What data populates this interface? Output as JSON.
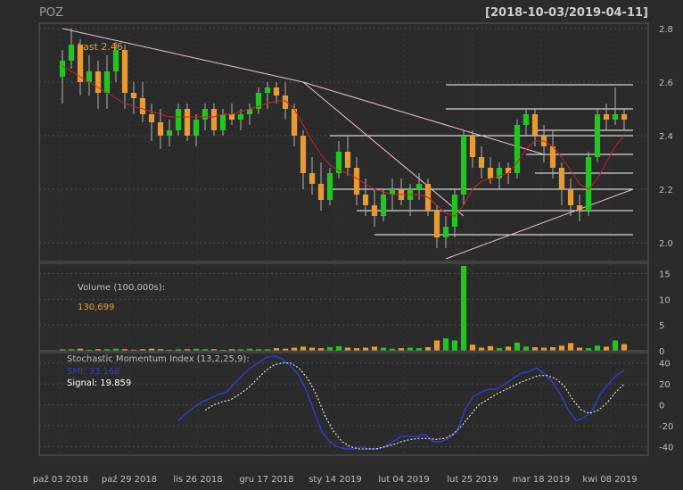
{
  "chart_data": {
    "type": "candlestick",
    "symbol": "POZ",
    "range": "[2018-10-03/2019-04-11]",
    "last_label": "Last 2.46",
    "x_tick_labels": [
      "paź 03 2018",
      "paź 29 2018",
      "lis 26 2018",
      "gru 17 2018",
      "sty 14 2019",
      "lut 04 2019",
      "lut 25 2019",
      "mar 18 2019",
      "kwi 08 2019"
    ],
    "price_panel": {
      "ylim": [
        1.93,
        2.82
      ],
      "yticks": [
        "2.0",
        "2.2",
        "2.4",
        "2.6",
        "2.8"
      ],
      "ohlc": [
        [
          2.62,
          2.72,
          2.52,
          2.68
        ],
        [
          2.68,
          2.8,
          2.65,
          2.74
        ],
        [
          2.74,
          2.76,
          2.55,
          2.6
        ],
        [
          2.6,
          2.7,
          2.55,
          2.64
        ],
        [
          2.64,
          2.68,
          2.5,
          2.56
        ],
        [
          2.56,
          2.7,
          2.5,
          2.64
        ],
        [
          2.64,
          2.75,
          2.6,
          2.72
        ],
        [
          2.72,
          2.74,
          2.5,
          2.56
        ],
        [
          2.56,
          2.6,
          2.48,
          2.54
        ],
        [
          2.54,
          2.6,
          2.45,
          2.48
        ],
        [
          2.48,
          2.52,
          2.38,
          2.45
        ],
        [
          2.45,
          2.5,
          2.35,
          2.4
        ],
        [
          2.4,
          2.46,
          2.36,
          2.42
        ],
        [
          2.42,
          2.52,
          2.4,
          2.5
        ],
        [
          2.5,
          2.52,
          2.38,
          2.4
        ],
        [
          2.4,
          2.48,
          2.36,
          2.46
        ],
        [
          2.46,
          2.52,
          2.42,
          2.5
        ],
        [
          2.5,
          2.52,
          2.4,
          2.42
        ],
        [
          2.42,
          2.5,
          2.4,
          2.48
        ],
        [
          2.48,
          2.52,
          2.44,
          2.46
        ],
        [
          2.46,
          2.5,
          2.42,
          2.48
        ],
        [
          2.48,
          2.52,
          2.44,
          2.5
        ],
        [
          2.5,
          2.58,
          2.48,
          2.56
        ],
        [
          2.56,
          2.6,
          2.5,
          2.58
        ],
        [
          2.58,
          2.6,
          2.52,
          2.55
        ],
        [
          2.55,
          2.6,
          2.46,
          2.5
        ],
        [
          2.5,
          2.52,
          2.36,
          2.4
        ],
        [
          2.4,
          2.42,
          2.2,
          2.26
        ],
        [
          2.26,
          2.32,
          2.18,
          2.22
        ],
        [
          2.22,
          2.3,
          2.12,
          2.16
        ],
        [
          2.16,
          2.28,
          2.14,
          2.26
        ],
        [
          2.26,
          2.38,
          2.24,
          2.34
        ],
        [
          2.34,
          2.4,
          2.25,
          2.28
        ],
        [
          2.28,
          2.32,
          2.14,
          2.18
        ],
        [
          2.18,
          2.24,
          2.1,
          2.14
        ],
        [
          2.14,
          2.2,
          2.06,
          2.1
        ],
        [
          2.1,
          2.2,
          2.08,
          2.18
        ],
        [
          2.18,
          2.24,
          2.12,
          2.2
        ],
        [
          2.2,
          2.24,
          2.14,
          2.16
        ],
        [
          2.16,
          2.22,
          2.1,
          2.2
        ],
        [
          2.2,
          2.26,
          2.16,
          2.22
        ],
        [
          2.22,
          2.24,
          2.1,
          2.12
        ],
        [
          2.12,
          2.14,
          1.98,
          2.02
        ],
        [
          2.02,
          2.1,
          1.98,
          2.06
        ],
        [
          2.06,
          2.2,
          2.02,
          2.18
        ],
        [
          2.18,
          2.42,
          2.14,
          2.4
        ],
        [
          2.4,
          2.42,
          2.28,
          2.32
        ],
        [
          2.32,
          2.36,
          2.24,
          2.28
        ],
        [
          2.28,
          2.32,
          2.22,
          2.24
        ],
        [
          2.24,
          2.3,
          2.2,
          2.28
        ],
        [
          2.28,
          2.3,
          2.22,
          2.26
        ],
        [
          2.26,
          2.46,
          2.24,
          2.44
        ],
        [
          2.44,
          2.5,
          2.4,
          2.48
        ],
        [
          2.48,
          2.5,
          2.36,
          2.4
        ],
        [
          2.4,
          2.44,
          2.3,
          2.36
        ],
        [
          2.36,
          2.42,
          2.24,
          2.28
        ],
        [
          2.28,
          2.3,
          2.14,
          2.2
        ],
        [
          2.2,
          2.24,
          2.1,
          2.14
        ],
        [
          2.14,
          2.18,
          2.08,
          2.12
        ],
        [
          2.12,
          2.34,
          2.1,
          2.32
        ],
        [
          2.32,
          2.5,
          2.3,
          2.48
        ],
        [
          2.48,
          2.52,
          2.42,
          2.46
        ],
        [
          2.46,
          2.58,
          2.44,
          2.48
        ],
        [
          2.48,
          2.5,
          2.42,
          2.46
        ]
      ],
      "ma": [
        2.66,
        2.64,
        2.62,
        2.6,
        2.58,
        2.56,
        2.54,
        2.52,
        2.51,
        2.5,
        2.49,
        2.48,
        2.47,
        2.47,
        2.47,
        2.47,
        2.47,
        2.47,
        2.48,
        2.48,
        2.49,
        2.5,
        2.51,
        2.52,
        2.53,
        2.53,
        2.5,
        2.44,
        2.38,
        2.33,
        2.29,
        2.27,
        2.26,
        2.24,
        2.22,
        2.2,
        2.19,
        2.18,
        2.18,
        2.18,
        2.18,
        2.17,
        2.14,
        2.11,
        2.1,
        2.14,
        2.2,
        2.23,
        2.24,
        2.25,
        2.26,
        2.3,
        2.35,
        2.38,
        2.38,
        2.36,
        2.32,
        2.27,
        2.22,
        2.2,
        2.24,
        2.3,
        2.36,
        2.4
      ],
      "trend_lines": [
        {
          "from": [
            0,
            2.8
          ],
          "to": [
            27,
            2.6
          ]
        },
        {
          "from": [
            27,
            2.6
          ],
          "to": [
            54,
            2.33
          ]
        },
        {
          "from": [
            27,
            2.6
          ],
          "to": [
            45,
            2.1
          ]
        },
        {
          "from": [
            43,
            1.94
          ],
          "to": [
            64,
            2.2
          ]
        }
      ],
      "levels": [
        {
          "y": 2.59,
          "from": 43,
          "to": 64
        },
        {
          "y": 2.5,
          "from": 43,
          "to": 64
        },
        {
          "y": 2.42,
          "from": 53,
          "to": 64
        },
        {
          "y": 2.4,
          "from": 30,
          "to": 64
        },
        {
          "y": 2.33,
          "from": 52,
          "to": 64
        },
        {
          "y": 2.26,
          "from": 53,
          "to": 64
        },
        {
          "y": 2.2,
          "from": 30,
          "to": 64
        },
        {
          "y": 2.12,
          "from": 33,
          "to": 64
        },
        {
          "y": 2.03,
          "from": 35,
          "to": 64
        }
      ]
    },
    "volume_panel": {
      "label": "Volume (100,000s):",
      "last_value": "130,699",
      "ylim": [
        0,
        17
      ],
      "yticks": [
        "0",
        "5",
        "10",
        "15"
      ],
      "values": [
        0.3,
        0.3,
        0.4,
        0.2,
        0.3,
        0.3,
        0.4,
        0.3,
        0.2,
        0.3,
        0.4,
        0.3,
        0.2,
        0.3,
        0.3,
        0.4,
        0.3,
        0.3,
        0.2,
        0.3,
        0.3,
        0.4,
        0.3,
        0.3,
        0.5,
        0.4,
        0.6,
        0.8,
        0.6,
        0.5,
        0.7,
        0.9,
        0.6,
        0.5,
        0.6,
        0.8,
        0.6,
        0.4,
        0.5,
        0.6,
        0.5,
        0.7,
        2.0,
        2.4,
        2.0,
        16.5,
        1.2,
        0.6,
        0.9,
        0.5,
        0.8,
        1.6,
        0.8,
        0.7,
        0.6,
        0.7,
        1.0,
        1.5,
        0.6,
        0.5,
        1.0,
        0.8,
        2.0,
        1.3
      ]
    },
    "smi_panel": {
      "title": "Stochastic Momentum Index (13,2,25,9):",
      "smi_label": "SMI: 33.168",
      "signal_label": "Signal: 19.859",
      "ylim": [
        -48,
        50
      ],
      "yticks": [
        "-40",
        "-20",
        "0",
        "20",
        "40"
      ],
      "smi_start": 13,
      "smi": [
        -15,
        -8,
        -2,
        3,
        6,
        10,
        12,
        20,
        28,
        35,
        40,
        45,
        47,
        44,
        38,
        30,
        15,
        -5,
        -25,
        -35,
        -40,
        -42,
        -42,
        -40,
        -42,
        -42,
        -40,
        -35,
        -30,
        -30,
        -30,
        -28,
        -35,
        -35,
        -32,
        -25,
        -5,
        8,
        12,
        15,
        15,
        20,
        25,
        30,
        32,
        35,
        30,
        22,
        10,
        -5,
        -15,
        -12,
        -5,
        10,
        20,
        28,
        33
      ],
      "signal_start": 16,
      "signal": [
        -5,
        0,
        3,
        5,
        10,
        16,
        24,
        32,
        38,
        40,
        40,
        35,
        25,
        10,
        -10,
        -25,
        -35,
        -40,
        -42,
        -42,
        -42,
        -40,
        -38,
        -35,
        -33,
        -32,
        -32,
        -33,
        -32,
        -28,
        -20,
        -10,
        0,
        5,
        10,
        14,
        18,
        22,
        25,
        28,
        28,
        25,
        18,
        5,
        -5,
        -8,
        -5,
        2,
        12,
        20
      ]
    }
  },
  "colors": {
    "background": "#2b2b2b",
    "up": "#1ec81e",
    "down": "#e89b33",
    "grid": "#4a4a4a",
    "text": "#bdbdbd",
    "ma": "#d02020",
    "trend": "#f4bfd8",
    "level": "#ffffff",
    "smi": "#2a3fd0",
    "signal": "#ffffff",
    "volume_label": "#bdbdbd",
    "volume_value": "#e89b33",
    "last": "#e89b33"
  }
}
